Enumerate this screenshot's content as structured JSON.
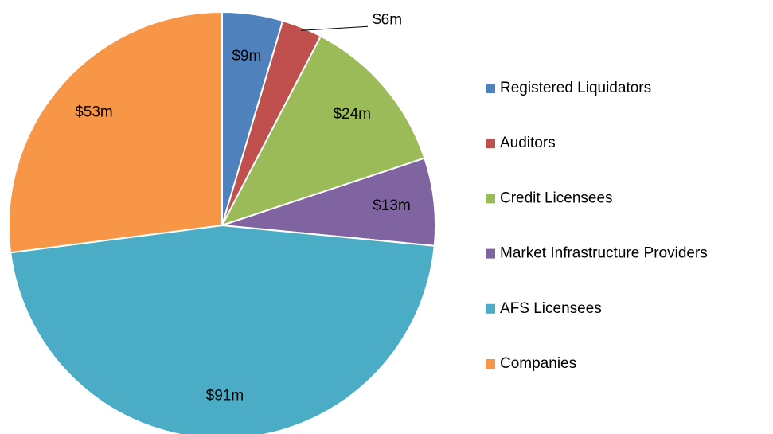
{
  "chart_data": {
    "type": "pie",
    "categories": [
      "Registered Liquidators",
      "Auditors",
      "Credit Licensees",
      "Market Infrastructure Providers",
      "AFS Licensees",
      "Companies"
    ],
    "values": [
      9,
      6,
      24,
      13,
      91,
      53
    ],
    "value_labels": [
      "$9m",
      "$6m",
      "$24m",
      "$13m",
      "$91m",
      "$53m"
    ],
    "colors": [
      "#4f81bd",
      "#c0504d",
      "#9bbb59",
      "#8064a2",
      "#4bacc6",
      "#f79646"
    ],
    "legend": "right"
  }
}
